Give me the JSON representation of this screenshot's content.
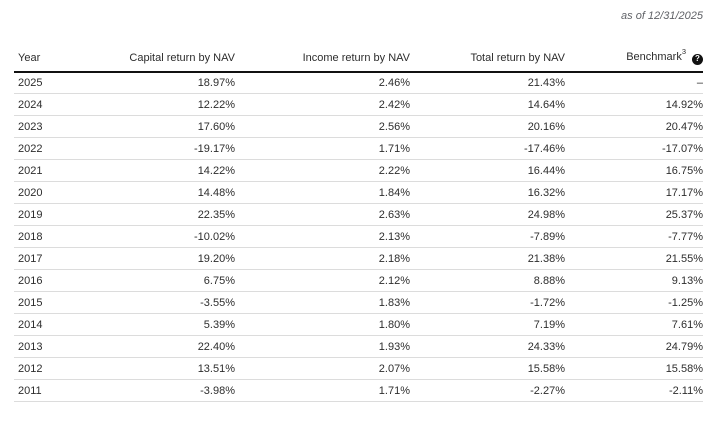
{
  "meta": {
    "as_of": "as of 12/31/2025"
  },
  "colors": {
    "text": "#2d2d2d",
    "as_of_text": "#5f6166",
    "row_divider": "#dcdcdc",
    "header_rule": "#111111",
    "help_icon_bg": "#111111",
    "help_icon_fg": "#ffffff",
    "background": "#ffffff"
  },
  "table": {
    "columns": [
      {
        "label": "Year"
      },
      {
        "label": "Capital return by NAV"
      },
      {
        "label": "Income return by NAV"
      },
      {
        "label": "Total return by NAV"
      },
      {
        "label": "Benchmark",
        "superscript": "3",
        "help_icon": "?",
        "help_icon_name": "question-mark-help-icon"
      }
    ],
    "rows": [
      {
        "year": "2025",
        "capital": "18.97%",
        "income": "2.46%",
        "total": "21.43%",
        "benchmark": "–"
      },
      {
        "year": "2024",
        "capital": "12.22%",
        "income": "2.42%",
        "total": "14.64%",
        "benchmark": "14.92%"
      },
      {
        "year": "2023",
        "capital": "17.60%",
        "income": "2.56%",
        "total": "20.16%",
        "benchmark": "20.47%"
      },
      {
        "year": "2022",
        "capital": "-19.17%",
        "income": "1.71%",
        "total": "-17.46%",
        "benchmark": "-17.07%"
      },
      {
        "year": "2021",
        "capital": "14.22%",
        "income": "2.22%",
        "total": "16.44%",
        "benchmark": "16.75%"
      },
      {
        "year": "2020",
        "capital": "14.48%",
        "income": "1.84%",
        "total": "16.32%",
        "benchmark": "17.17%"
      },
      {
        "year": "2019",
        "capital": "22.35%",
        "income": "2.63%",
        "total": "24.98%",
        "benchmark": "25.37%"
      },
      {
        "year": "2018",
        "capital": "-10.02%",
        "income": "2.13%",
        "total": "-7.89%",
        "benchmark": "-7.77%"
      },
      {
        "year": "2017",
        "capital": "19.20%",
        "income": "2.18%",
        "total": "21.38%",
        "benchmark": "21.55%"
      },
      {
        "year": "2016",
        "capital": "6.75%",
        "income": "2.12%",
        "total": "8.88%",
        "benchmark": "9.13%"
      },
      {
        "year": "2015",
        "capital": "-3.55%",
        "income": "1.83%",
        "total": "-1.72%",
        "benchmark": "-1.25%"
      },
      {
        "year": "2014",
        "capital": "5.39%",
        "income": "1.80%",
        "total": "7.19%",
        "benchmark": "7.61%"
      },
      {
        "year": "2013",
        "capital": "22.40%",
        "income": "1.93%",
        "total": "24.33%",
        "benchmark": "24.79%"
      },
      {
        "year": "2012",
        "capital": "13.51%",
        "income": "2.07%",
        "total": "15.58%",
        "benchmark": "15.58%"
      },
      {
        "year": "2011",
        "capital": "-3.98%",
        "income": "1.71%",
        "total": "-2.27%",
        "benchmark": "-2.11%"
      }
    ]
  }
}
